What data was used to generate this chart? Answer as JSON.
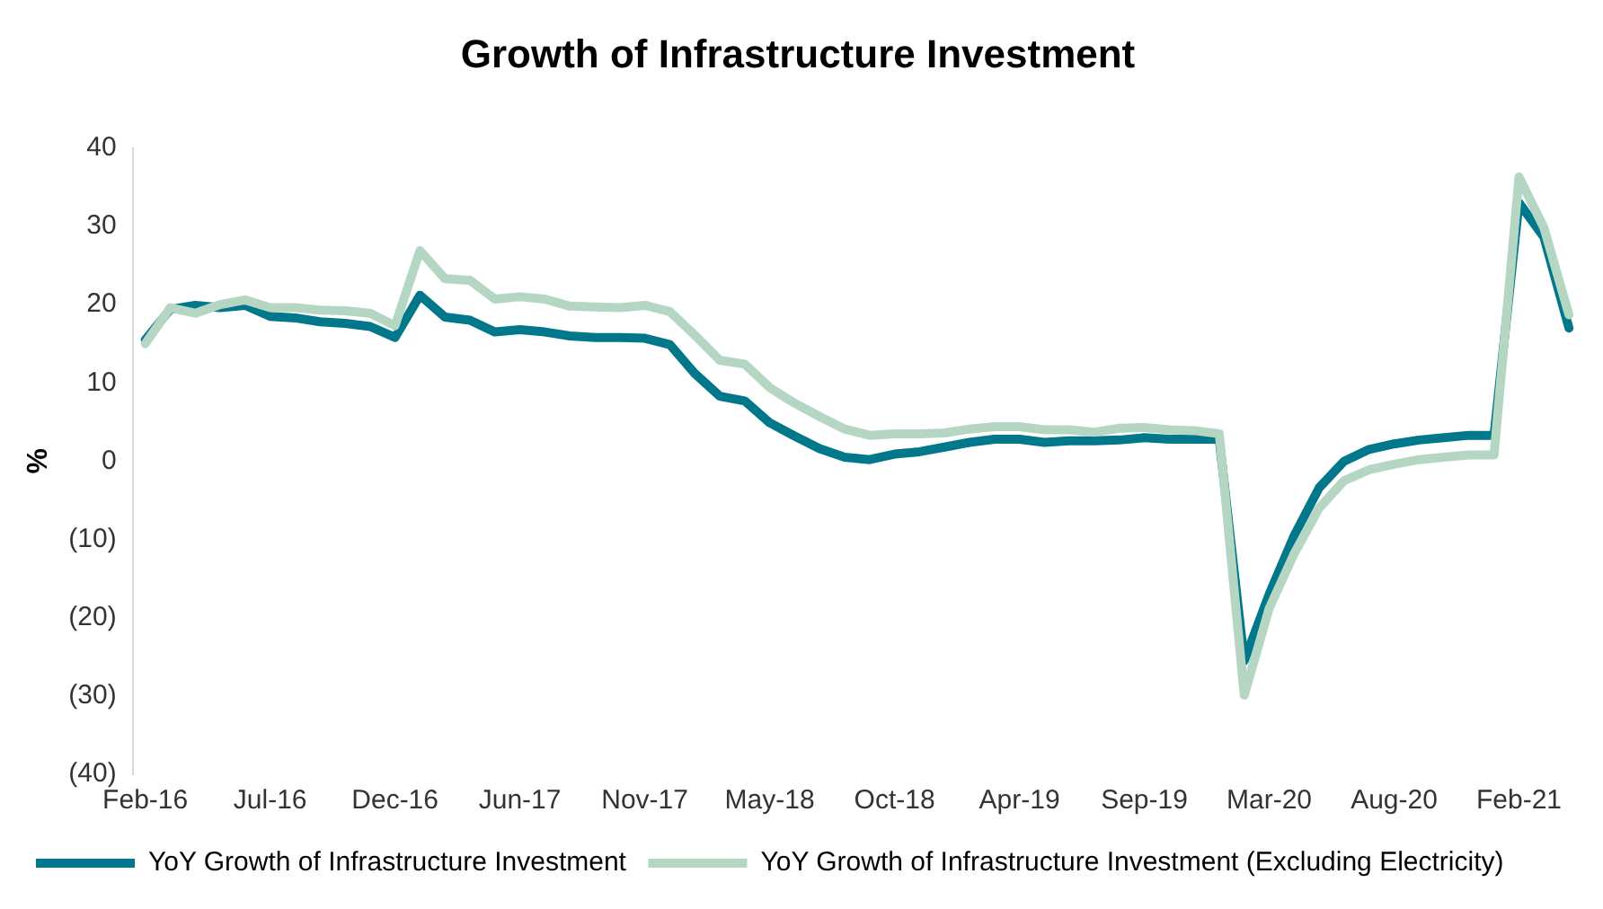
{
  "chart_data": {
    "type": "line",
    "title": "Growth of Infrastructure Investment",
    "ylabel": "%",
    "categories": [
      "Feb-16",
      null,
      null,
      null,
      null,
      "Jul-16",
      null,
      null,
      null,
      null,
      "Dec-16",
      null,
      null,
      null,
      null,
      "Jun-17",
      null,
      null,
      null,
      null,
      "Nov-17",
      null,
      null,
      null,
      null,
      "May-18",
      null,
      null,
      null,
      null,
      "Oct-18",
      null,
      null,
      null,
      null,
      "Apr-19",
      null,
      null,
      null,
      null,
      "Sep-19",
      null,
      null,
      null,
      null,
      "Mar-20",
      null,
      null,
      null,
      null,
      "Aug-20",
      null,
      null,
      null,
      null,
      "Feb-21",
      null,
      null
    ],
    "series": [
      {
        "name": "YoY Growth of Infrastructure Investment",
        "color": "#00778b",
        "values": [
          15.5,
          19.4,
          19.9,
          19.6,
          19.9,
          18.5,
          18.3,
          17.8,
          17.6,
          17.2,
          15.8,
          21.2,
          18.4,
          18,
          16.5,
          16.8,
          16.5,
          16,
          15.8,
          15.8,
          15.7,
          14.9,
          11.2,
          8.3,
          7.7,
          4.9,
          3.2,
          1.6,
          0.5,
          0.2,
          0.9,
          1.2,
          1.8,
          2.4,
          2.8,
          2.8,
          2.4,
          2.6,
          2.6,
          2.7,
          3,
          2.8,
          2.8,
          2.8,
          -25.5,
          -17,
          -9.5,
          -3.4,
          0,
          1.5,
          2.2,
          2.7,
          3,
          3.3,
          3.3,
          33,
          28.6,
          17
        ]
      },
      {
        "name": "YoY Growth of Infrastructure Investment (Excluding Electricity)",
        "color": "#b5d6c3",
        "values": [
          15,
          19.6,
          18.9,
          20,
          20.6,
          19.6,
          19.6,
          19.3,
          19.2,
          18.9,
          17.3,
          26.9,
          23.3,
          23.1,
          20.7,
          21,
          20.7,
          19.8,
          19.7,
          19.6,
          19.9,
          19.1,
          16.1,
          12.9,
          12.4,
          9.4,
          7.4,
          5.7,
          4.1,
          3.3,
          3.5,
          3.5,
          3.6,
          4.1,
          4.4,
          4.4,
          4,
          4,
          3.7,
          4.2,
          4.3,
          4,
          3.9,
          3.5,
          -29.9,
          -18.8,
          -11.8,
          -6,
          -2.5,
          -1.1,
          -0.4,
          0.2,
          0.5,
          0.8,
          0.8,
          36.3,
          29.8,
          18.7
        ]
      }
    ],
    "ylim": [
      -40,
      40
    ],
    "yticks": [
      {
        "value": -40,
        "label": "(40)"
      },
      {
        "value": -30,
        "label": "(30)"
      },
      {
        "value": -20,
        "label": "(20)"
      },
      {
        "value": -10,
        "label": "(10)"
      },
      0,
      10,
      20,
      30,
      40
    ],
    "grid": false,
    "legend": "bottom",
    "marker": "none",
    "line_style": "solid"
  }
}
